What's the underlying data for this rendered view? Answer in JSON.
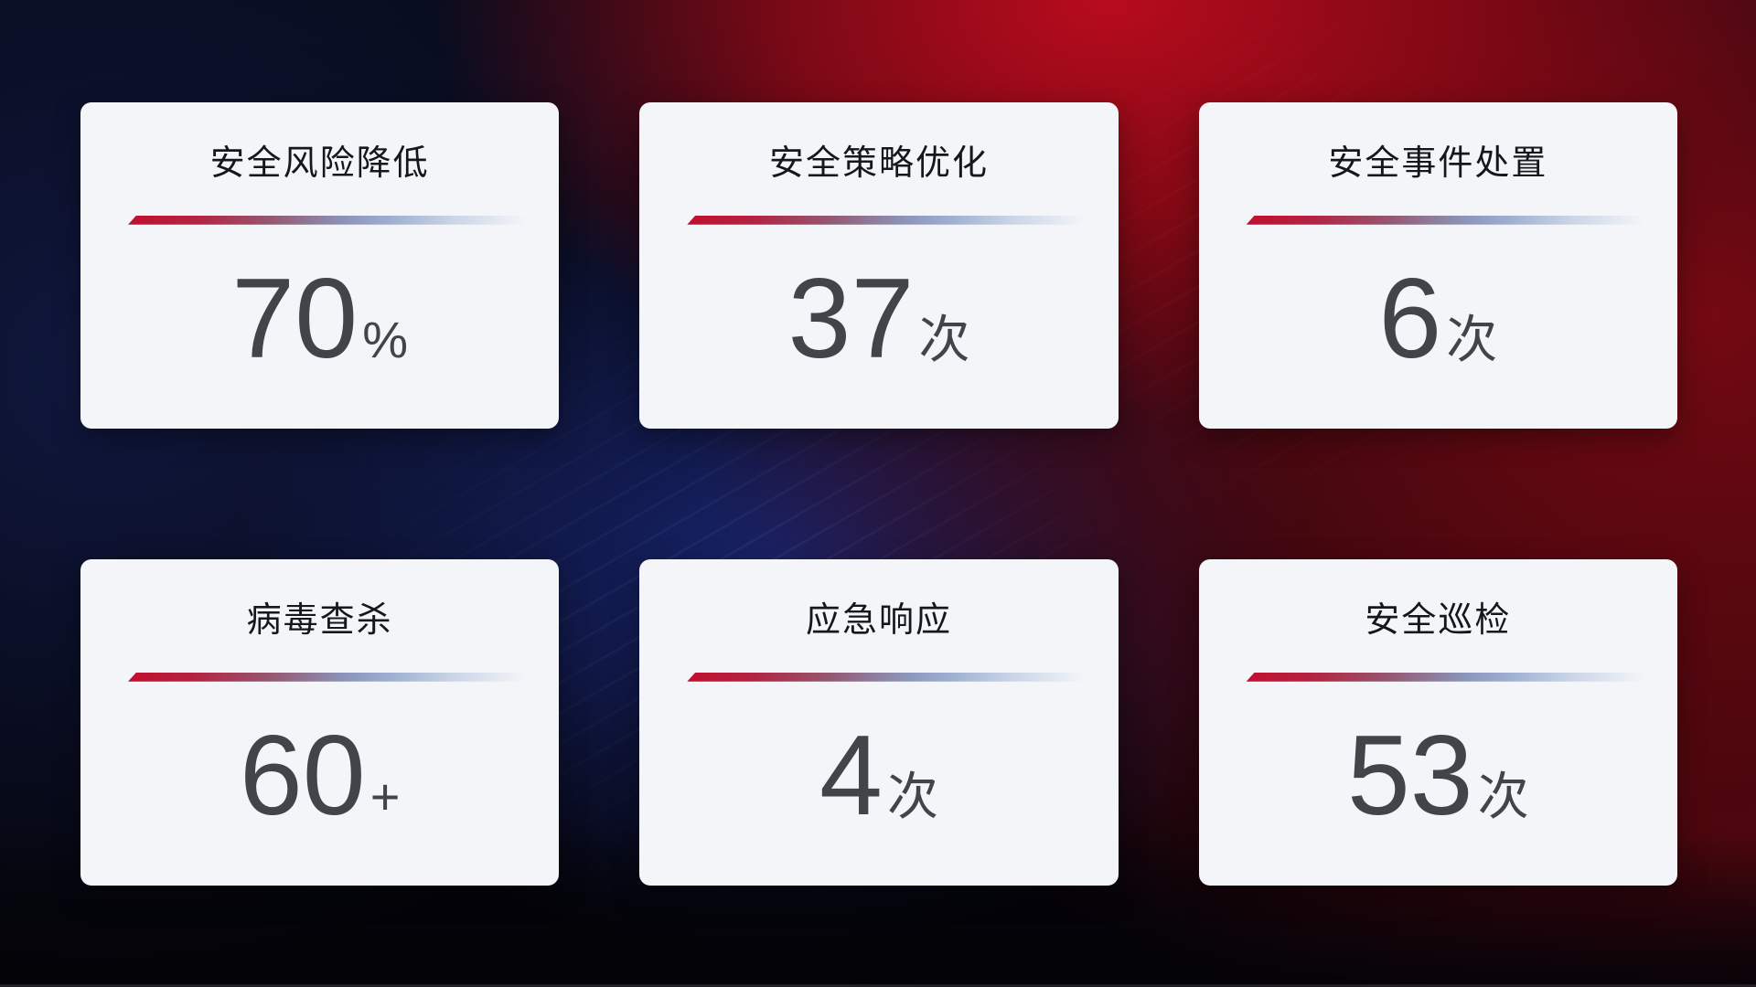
{
  "cards": [
    {
      "title": "安全风险降低",
      "value": "70",
      "unit": "%"
    },
    {
      "title": "安全策略优化",
      "value": "37",
      "unit": "次"
    },
    {
      "title": "安全事件处置",
      "value": "6",
      "unit": "次"
    },
    {
      "title": "病毒查杀",
      "value": "60",
      "unit": "+"
    },
    {
      "title": "应急响应",
      "value": "4",
      "unit": "次"
    },
    {
      "title": "安全巡检",
      "value": "53",
      "unit": "次"
    }
  ],
  "colors": {
    "card-bg": "#f4f5f9",
    "title-color": "#15171c",
    "value-color": "#414449",
    "line-red": "#c10f2e",
    "line-mid": "#8b93b8",
    "line-fade": "#c9d4e6",
    "bg-base": "#05060d",
    "bg-navy": "#101840",
    "bg-blue-glow": "#1a287a",
    "bg-red-bright": "#ae0c1e",
    "bg-red-dark": "#700a12",
    "bg-maroon": "#38060c"
  }
}
